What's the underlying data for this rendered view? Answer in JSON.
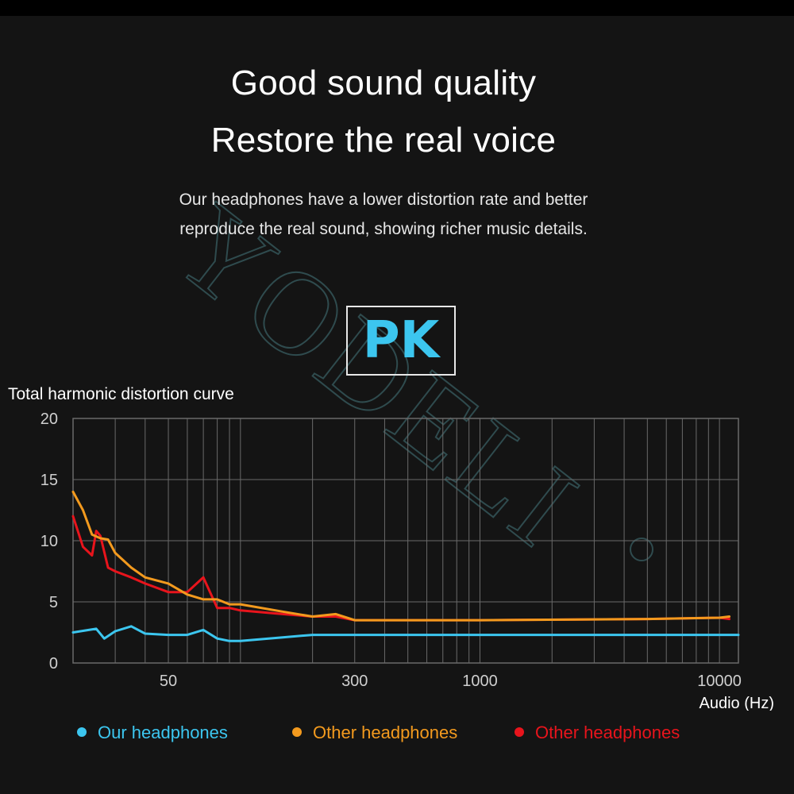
{
  "watermark": {
    "text": "YODELI"
  },
  "heading": {
    "line1": "Good sound quality",
    "line2": "Restore the real voice"
  },
  "description": {
    "line1": "Our headphones have a lower distortion rate and better",
    "line2": "reproduce the real sound, showing richer music details."
  },
  "badge": {
    "text": "PK"
  },
  "colors": {
    "ours": "#3cc6ef",
    "orange": "#f39a1e",
    "red": "#e8141c",
    "grid": "#6a6a6a"
  },
  "chart_data": {
    "type": "line",
    "title": "Total harmonic distortion curve",
    "xlabel": "Audio (Hz)",
    "ylabel": "",
    "x_scale": "log",
    "xlim": [
      20,
      12000
    ],
    "ylim": [
      0,
      20
    ],
    "yticks": [
      0,
      5,
      10,
      15,
      20
    ],
    "xticks": [
      50,
      300,
      1000,
      10000
    ],
    "grid": true,
    "legend_position": "bottom",
    "series": [
      {
        "name": "Our headphones",
        "color": "#3cc6ef",
        "x": [
          20,
          25,
          27,
          30,
          35,
          40,
          50,
          60,
          70,
          80,
          90,
          100,
          150,
          200,
          300,
          10000,
          12000
        ],
        "y": [
          2.5,
          2.8,
          2.0,
          2.6,
          3.0,
          2.4,
          2.3,
          2.3,
          2.7,
          2.0,
          1.8,
          1.8,
          2.1,
          2.3,
          2.3,
          2.3,
          2.3
        ]
      },
      {
        "name": "Other headphones",
        "color": "#f39a1e",
        "x": [
          20,
          22,
          24,
          26,
          28,
          30,
          35,
          40,
          50,
          60,
          70,
          80,
          90,
          100,
          150,
          200,
          250,
          300,
          400,
          1000,
          5000,
          10000,
          11000
        ],
        "y": [
          14.0,
          12.5,
          10.5,
          10.2,
          10.1,
          9.0,
          7.8,
          7.0,
          6.5,
          5.6,
          5.2,
          5.2,
          4.8,
          4.8,
          4.2,
          3.8,
          4.0,
          3.5,
          3.5,
          3.5,
          3.6,
          3.7,
          3.8
        ]
      },
      {
        "name": "Other headphones",
        "color": "#e8141c",
        "x": [
          20,
          22,
          24,
          25,
          26,
          28,
          30,
          35,
          40,
          50,
          60,
          70,
          80,
          90,
          100,
          150,
          200,
          250,
          300,
          400,
          1000,
          5000,
          10000,
          11000
        ],
        "y": [
          12.0,
          9.5,
          8.8,
          10.8,
          10.4,
          7.8,
          7.5,
          7.0,
          6.5,
          5.8,
          5.8,
          7.0,
          4.5,
          4.5,
          4.3,
          4.0,
          3.8,
          3.8,
          3.5,
          3.5,
          3.5,
          3.6,
          3.7,
          3.6
        ]
      }
    ]
  }
}
